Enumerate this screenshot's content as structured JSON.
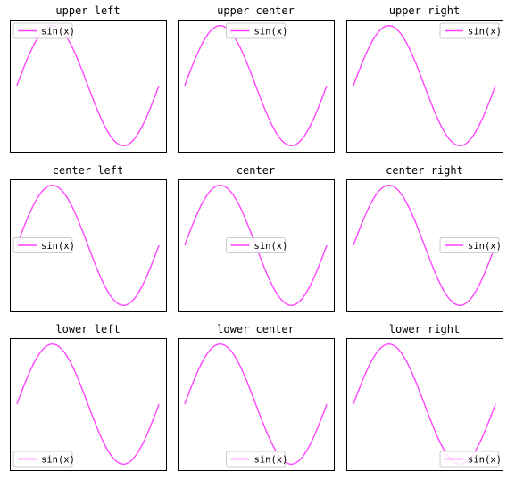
{
  "chart_data": [
    {
      "type": "line",
      "title": "upper left",
      "legend_loc": "upper left",
      "series": [
        {
          "name": "sin(x)",
          "color": "#ff44ff",
          "function": "sin",
          "x_range": [
            0,
            6.283185
          ]
        }
      ],
      "grid": false
    },
    {
      "type": "line",
      "title": "upper center",
      "legend_loc": "upper center",
      "series": [
        {
          "name": "sin(x)",
          "color": "#ff44ff",
          "function": "sin",
          "x_range": [
            0,
            6.283185
          ]
        }
      ],
      "grid": false
    },
    {
      "type": "line",
      "title": "upper right",
      "legend_loc": "upper right",
      "series": [
        {
          "name": "sin(x)",
          "color": "#ff44ff",
          "function": "sin",
          "x_range": [
            0,
            6.283185
          ]
        }
      ],
      "grid": false
    },
    {
      "type": "line",
      "title": "center left",
      "legend_loc": "center left",
      "series": [
        {
          "name": "sin(x)",
          "color": "#ff44ff",
          "function": "sin",
          "x_range": [
            0,
            6.283185
          ]
        }
      ],
      "grid": false
    },
    {
      "type": "line",
      "title": "center",
      "legend_loc": "center",
      "series": [
        {
          "name": "sin(x)",
          "color": "#ff44ff",
          "function": "sin",
          "x_range": [
            0,
            6.283185
          ]
        }
      ],
      "grid": false
    },
    {
      "type": "line",
      "title": "center right",
      "legend_loc": "center right",
      "series": [
        {
          "name": "sin(x)",
          "color": "#ff44ff",
          "function": "sin",
          "x_range": [
            0,
            6.283185
          ]
        }
      ],
      "grid": false
    },
    {
      "type": "line",
      "title": "lower left",
      "legend_loc": "lower left",
      "series": [
        {
          "name": "sin(x)",
          "color": "#ff44ff",
          "function": "sin",
          "x_range": [
            0,
            6.283185
          ]
        }
      ],
      "grid": false
    },
    {
      "type": "line",
      "title": "lower center",
      "legend_loc": "lower center",
      "series": [
        {
          "name": "sin(x)",
          "color": "#ff44ff",
          "function": "sin",
          "x_range": [
            0,
            6.283185
          ]
        }
      ],
      "grid": false
    },
    {
      "type": "line",
      "title": "lower right",
      "legend_loc": "lower right",
      "series": [
        {
          "name": "sin(x)",
          "color": "#ff44ff",
          "function": "sin",
          "x_range": [
            0,
            6.283185
          ]
        }
      ],
      "grid": false
    }
  ]
}
